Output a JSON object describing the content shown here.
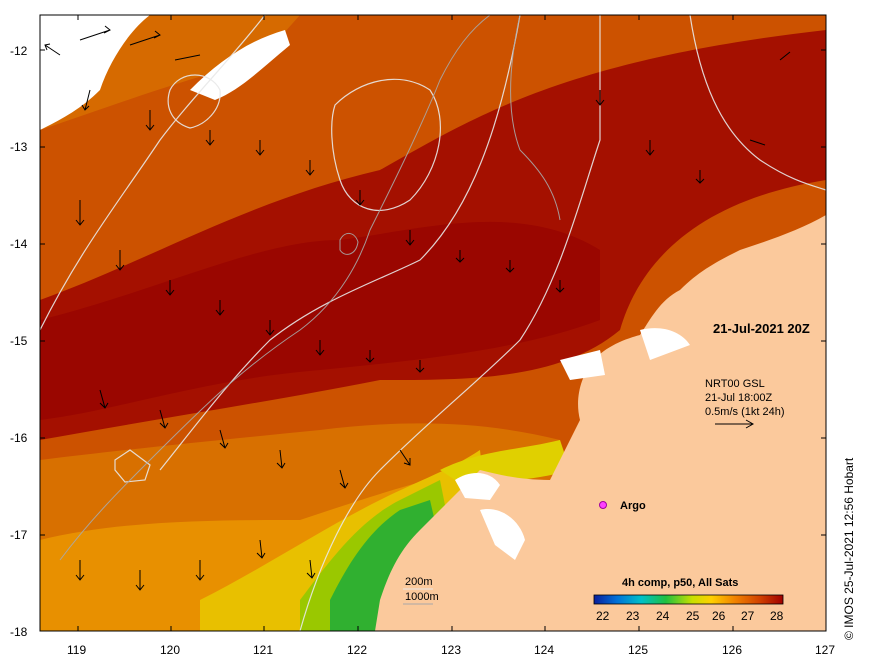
{
  "map": {
    "timestamp": "21-Jul-2021 20Z",
    "current_info": {
      "source": "NRT00 GSL",
      "time": "21-Jul 18:00Z",
      "scale": "0.5m/s (1kt 24h)"
    },
    "argo_label": "Argo",
    "depth_contours": {
      "shallow": "200m",
      "deep": "1000m"
    },
    "colorbar": {
      "title": "4h comp, p50, All Sats",
      "ticks": [
        "22",
        "23",
        "24",
        "25",
        "26",
        "27",
        "28"
      ],
      "colors": [
        "#0a1e9c",
        "#0070d8",
        "#00c0c8",
        "#20c040",
        "#c8e000",
        "#ffd000",
        "#f08000",
        "#d04000",
        "#a00000"
      ]
    },
    "credit": "© IMOS 25-Jul-2021 12:56 Hobart",
    "lat_labels": [
      "-12",
      "-13",
      "-14",
      "-15",
      "-16",
      "-17",
      "-18"
    ],
    "lon_labels": [
      "119",
      "120",
      "121",
      "122",
      "123",
      "124",
      "125",
      "126",
      "127"
    ]
  }
}
